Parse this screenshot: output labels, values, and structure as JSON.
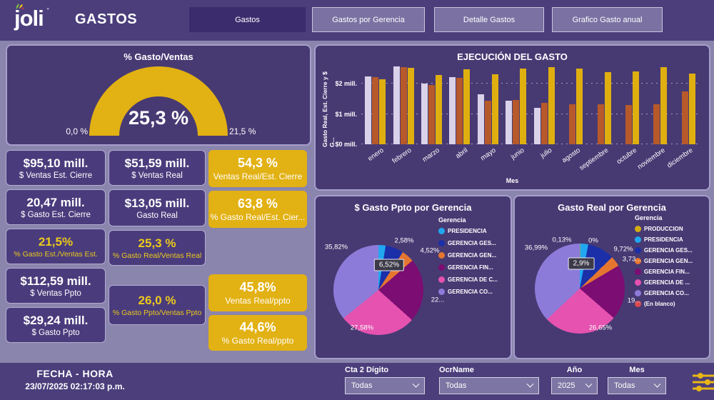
{
  "header": {
    "logo_text": "joli",
    "title": "GASTOS",
    "tabs": [
      {
        "label": "Gastos",
        "active": true
      },
      {
        "label": "Gastos por Gerencia",
        "active": false
      },
      {
        "label": "Detalle Gastos",
        "active": false
      },
      {
        "label": "Grafico Gasto anual",
        "active": false
      }
    ]
  },
  "kpis": {
    "col1": [
      {
        "value": "$95,10 mill.",
        "label": "$ Ventas Est. Cierre",
        "style": "purple"
      },
      {
        "value": "20,47 mill.",
        "label": "$ Gasto Est. Cierre",
        "style": "purple"
      },
      {
        "value": "21,5%",
        "label": "% Gasto Est./Ventas Est.",
        "style": "pyellow"
      },
      {
        "value": "$112,59 mill.",
        "label": "$ Ventas Ppto",
        "style": "purple"
      },
      {
        "value": "$29,24 mill.",
        "label": "$ Gasto Ppto",
        "style": "purple"
      }
    ],
    "col2": [
      {
        "value": "$51,59 mill.",
        "label": "$ Ventas Real",
        "style": "purple"
      },
      {
        "value": "$13,05 mill.",
        "label": "Gasto Real",
        "style": "purple"
      },
      {
        "value": "25,3 %",
        "label": "% Gasto Real/Ventas Real",
        "style": "pyellow"
      },
      {
        "value": "26,0 %",
        "label": "% Gasto Ppto/Ventas Ppto",
        "style": "pyellow"
      }
    ],
    "col3": [
      {
        "value": "54,3 %",
        "label": "Ventas Real/Est. Cierre",
        "style": "yellow"
      },
      {
        "value": "63,8 %",
        "label": "% Gasto Real/Est. Cier...",
        "style": "yellow"
      },
      {
        "value": "45,8%",
        "label": "Ventas Real/ppto",
        "style": "yellow"
      },
      {
        "value": "44,6%",
        "label": "% Gasto Real/ppto",
        "style": "yellow"
      }
    ]
  },
  "chart_data": [
    {
      "type": "gauge",
      "title": "% Gasto/Ventas",
      "value": 25.3,
      "value_label": "25,3 %",
      "min": 0.0,
      "max": 21.5,
      "min_label": "0,0 %",
      "max_label": "21,5 %",
      "arc_color": "#e2b113"
    },
    {
      "type": "bar",
      "title": "EJECUCIÓN DEL GASTO",
      "ylabel": "Gasto Real, Est. Cierre y $ G...",
      "xlabel": "Mes",
      "yticks": [
        "$0 mill.",
        "$1 mill.",
        "$2 mill."
      ],
      "ylim": [
        0,
        2.6
      ],
      "grid": "dotted",
      "categories": [
        "enero",
        "febrero",
        "marzo",
        "abril",
        "mayo",
        "junio",
        "julio",
        "agosto",
        "septiembre",
        "octubre",
        "noviembre",
        "diciembre"
      ],
      "series": [
        {
          "name": "serie-lavanda",
          "color": "#d9d2e9",
          "values": [
            2.25,
            2.57,
            2.0,
            2.22,
            1.65,
            1.45,
            1.2,
            null,
            null,
            null,
            null,
            null
          ]
        },
        {
          "name": "serie-naranja",
          "color": "#b7592a",
          "values": [
            2.23,
            2.55,
            1.97,
            2.2,
            1.45,
            1.47,
            1.37,
            1.32,
            1.32,
            1.3,
            1.33,
            1.75
          ]
        },
        {
          "name": "serie-amarilla",
          "color": "#dfaf10",
          "values": [
            2.15,
            2.53,
            2.3,
            2.48,
            2.32,
            2.5,
            2.55,
            2.5,
            2.38,
            2.4,
            2.55,
            2.33
          ]
        }
      ]
    },
    {
      "type": "pie",
      "title": "$ Gasto Ppto por Gerencia",
      "legend_title": "Gerencia",
      "legend_position": "right",
      "slices": [
        {
          "name": "PRESIDENCIA",
          "color": "#22a7f0",
          "value": 2.58,
          "label": "2,58%"
        },
        {
          "name": "GERENCIA GES...",
          "color": "#1b2fa8",
          "value": 6.52,
          "label": "6,52%",
          "tooltip": true
        },
        {
          "name": "GERENCIA GEN...",
          "color": "#e5762f",
          "value": 4.52,
          "label": "4,52%"
        },
        {
          "name": "GERENCIA FIN...",
          "color": "#7c0d73",
          "value": 22.98,
          "label": "22..."
        },
        {
          "name": "GERENCIA DE C...",
          "color": "#e552af",
          "value": 27.58,
          "label": "27,58%"
        },
        {
          "name": "GERENCIA CO...",
          "color": "#8d7bda",
          "value": 35.82,
          "label": "35,82%"
        }
      ]
    },
    {
      "type": "pie",
      "title": "Gasto Real por Gerencia",
      "legend_title": "Gerencia",
      "legend_position": "right",
      "slices": [
        {
          "name": "PRODUCCION",
          "color": "#d3ae12",
          "value": 0.13,
          "label": "0,13%"
        },
        {
          "name": "PRESIDENCIA",
          "color": "#22a7f0",
          "value": 2.9,
          "label": "2,9%",
          "tooltip": true
        },
        {
          "name": "GERENCIA GES...",
          "color": "#1b2fa8",
          "value": 9.72,
          "label": "9,72%"
        },
        {
          "name": "GERENCIA GEN...",
          "color": "#e5762f",
          "value": 3.73,
          "label": "3,73..."
        },
        {
          "name": "GERENCIA FIN...",
          "color": "#7c0d73",
          "value": 19.88,
          "label": "19..."
        },
        {
          "name": "GERENCIA DE ...",
          "color": "#e552af",
          "value": 26.65,
          "label": "26,65%"
        },
        {
          "name": "GERENCIA CO...",
          "color": "#8d7bda",
          "value": 36.99,
          "label": "36,99%"
        },
        {
          "name": "(En blanco)",
          "color": "#d94a4e",
          "value": 0.0,
          "label": "0%"
        }
      ]
    }
  ],
  "footer": {
    "fecha_title": "FECHA - HORA",
    "fecha_value": "23/07/2025 02:17:03 p.m.",
    "filters": [
      {
        "label": "Cta 2 Dígito",
        "value": "Todas"
      },
      {
        "label": "OcrName",
        "value": "Todas"
      },
      {
        "label": "Año",
        "value": "2025"
      },
      {
        "label": "Mes",
        "value": "Todas"
      }
    ]
  },
  "colors": {
    "page_bg": "#8a85ad",
    "bar_bg": "#4b3e7b",
    "panel_bg": "#473a73",
    "accent_yellow": "#e2b113",
    "yellow_text": "#ecc91c"
  }
}
